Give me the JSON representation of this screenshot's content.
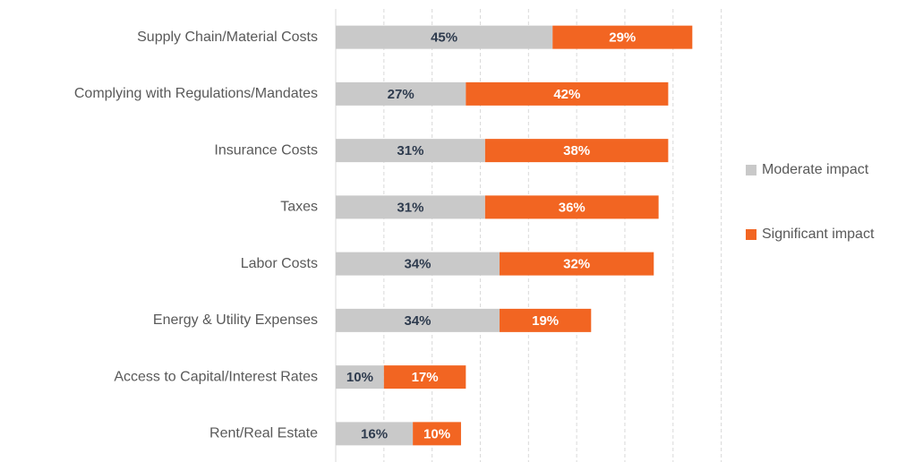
{
  "chart_data": {
    "type": "stacked_barh",
    "categories": [
      "Supply Chain/Material Costs",
      "Complying with Regulations/Mandates",
      "Insurance Costs",
      "Taxes",
      "Labor Costs",
      "Energy & Utility Expenses",
      "Access to Capital/Interest Rates",
      "Rent/Real Estate"
    ],
    "series": [
      {
        "name": "Moderate impact",
        "color": "#c9c9c9",
        "label_color": "#2e3b4e",
        "values": [
          45,
          27,
          31,
          31,
          34,
          34,
          10,
          16
        ],
        "value_labels": [
          "45%",
          "27%",
          "31%",
          "31%",
          "34%",
          "34%",
          "10%",
          "16%"
        ]
      },
      {
        "name": "Significant impact",
        "color": "#f26522",
        "label_color": "#ffffff",
        "values": [
          29,
          42,
          38,
          36,
          32,
          19,
          17,
          10
        ],
        "value_labels": [
          "29%",
          "42%",
          "38%",
          "36%",
          "32%",
          "19%",
          "17%",
          "10%"
        ]
      }
    ],
    "xlim": [
      0,
      81
    ],
    "xticks": [
      10,
      20,
      30,
      40,
      50,
      60,
      70,
      80
    ],
    "grid": true,
    "legend": "right"
  }
}
